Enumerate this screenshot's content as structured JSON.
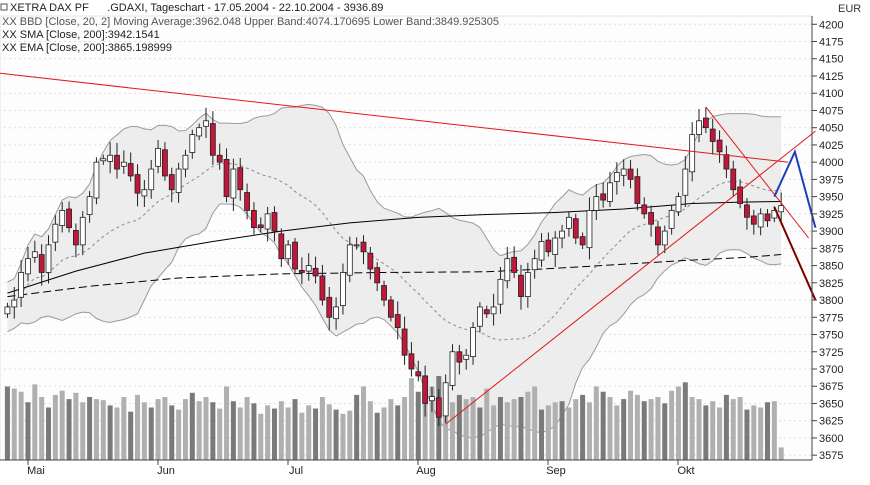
{
  "legend": {
    "line1": "XETRA DAX PF      .GDAXI, Tageschart - 17.05.2004 - 22.10.2004 - 3936.89",
    "line2": "XX BBD [Close, 20, 2] Moving Average:3962.048 Upper Band:4074.170695 Lower Band:3849.925305",
    "line3": "XX SMA [Close, 200]:3942.1541",
    "line4": "XX EMA [Close, 200]:3865.198999"
  },
  "chart_data": {
    "type": "candlestick",
    "currency": "EUR",
    "y_ticks": [
      4200,
      4175,
      4150,
      4125,
      4100,
      4075,
      4050,
      4025,
      4000,
      3975,
      3950,
      3925,
      3900,
      3875,
      3850,
      3825,
      3800,
      3775,
      3750,
      3725,
      3700,
      3675,
      3650,
      3625,
      3600,
      3575
    ],
    "ylim": [
      3568,
      4212
    ],
    "x_labels": [
      "Mai",
      "Jun",
      "Jul",
      "Aug",
      "Sep",
      "Okt"
    ],
    "grid": true,
    "colors": {
      "up_fill": "#ffffff",
      "down_fill": "#c0173b",
      "candle_outline": "#222222",
      "band_fill": "#e8e8e8",
      "band_line": "#9a9a9a",
      "ma_line": "#8a8a8a",
      "sma_line": "#000000",
      "ema_line": "#000000",
      "trend_line": "#e11818",
      "projection_blue": "#1e3fb5",
      "projection_dark": "#7a0000",
      "volume_dark": "#7a7a7a",
      "volume_light": "#b0b0b0"
    },
    "close_series": [
      3790,
      3800,
      3840,
      3860,
      3870,
      3840,
      3880,
      3910,
      3930,
      3905,
      3880,
      3920,
      3950,
      4000,
      4005,
      4010,
      3990,
      4000,
      3980,
      3955,
      3960,
      3990,
      4020,
      3980,
      3960,
      3990,
      4010,
      4040,
      4050,
      4060,
      4010,
      4000,
      3950,
      3990,
      3960,
      3930,
      3905,
      3905,
      3925,
      3900,
      3860,
      3880,
      3845,
      3840,
      3850,
      3835,
      3800,
      3775,
      3790,
      3840,
      3880,
      3880,
      3870,
      3845,
      3825,
      3800,
      3775,
      3760,
      3720,
      3700,
      3690,
      3650,
      3660,
      3630,
      3680,
      3725,
      3710,
      3720,
      3760,
      3790,
      3780,
      3790,
      3830,
      3860,
      3840,
      3805,
      3840,
      3860,
      3885,
      3870,
      3890,
      3900,
      3920,
      3890,
      3880,
      3930,
      3950,
      3945,
      3970,
      3985,
      3990,
      3975,
      3940,
      3925,
      3910,
      3880,
      3900,
      3930,
      3950,
      3990,
      4040,
      4060,
      4050,
      4030,
      4015,
      3990,
      3960,
      3940,
      3920,
      3910,
      3925,
      3915,
      3930,
      3937
    ],
    "volume_series": [
      70,
      68,
      65,
      55,
      72,
      60,
      50,
      62,
      66,
      58,
      64,
      55,
      60,
      58,
      57,
      52,
      50,
      60,
      46,
      62,
      55,
      50,
      58,
      60,
      52,
      48,
      58,
      64,
      56,
      60,
      55,
      49,
      70,
      56,
      50,
      60,
      54,
      44,
      52,
      49,
      56,
      50,
      58,
      45,
      52,
      49,
      60,
      53,
      48,
      44,
      47,
      62,
      70,
      56,
      45,
      50,
      58,
      52,
      60,
      78,
      65,
      72,
      70,
      80,
      42,
      55,
      62,
      58,
      60,
      50,
      68,
      52,
      60,
      55,
      58,
      60,
      65,
      70,
      48,
      52,
      55,
      56,
      50,
      58,
      62,
      55,
      70,
      65,
      60,
      52,
      58,
      66,
      62,
      56,
      58,
      60,
      54,
      66,
      70,
      74,
      60,
      58,
      52,
      56,
      50,
      62,
      58,
      60,
      48,
      52,
      50,
      55,
      56,
      12
    ],
    "sma_points": [
      [
        0,
        3810
      ],
      [
        10,
        3842
      ],
      [
        20,
        3868
      ],
      [
        30,
        3885
      ],
      [
        40,
        3900
      ],
      [
        50,
        3912
      ],
      [
        60,
        3920
      ],
      [
        70,
        3924
      ],
      [
        80,
        3927
      ],
      [
        90,
        3932
      ],
      [
        100,
        3940
      ],
      [
        107,
        3942
      ],
      [
        113,
        3943
      ]
    ],
    "ema_points": [
      [
        0,
        3805
      ],
      [
        12,
        3820
      ],
      [
        25,
        3832
      ],
      [
        40,
        3838
      ],
      [
        55,
        3840
      ],
      [
        70,
        3841
      ],
      [
        80,
        3846
      ],
      [
        90,
        3852
      ],
      [
        100,
        3858
      ],
      [
        108,
        3862
      ],
      [
        113,
        3866
      ]
    ],
    "trend_lines": [
      {
        "color": "trend",
        "from": [
          -2,
          4130
        ],
        "to": [
          114,
          4000
        ]
      },
      {
        "color": "trend",
        "from": [
          64,
          3620
        ],
        "to": [
          118,
          4045
        ]
      },
      {
        "color": "trend",
        "from": [
          102,
          4080
        ],
        "to": [
          117,
          3890
        ]
      }
    ],
    "projections": [
      {
        "color": "projection_blue",
        "points": [
          [
            112,
            3950
          ],
          [
            115,
            4015
          ],
          [
            118,
            3905
          ]
        ]
      },
      {
        "color": "projection_dark",
        "points": [
          [
            112,
            3935
          ],
          [
            118,
            3800
          ]
        ]
      }
    ]
  }
}
